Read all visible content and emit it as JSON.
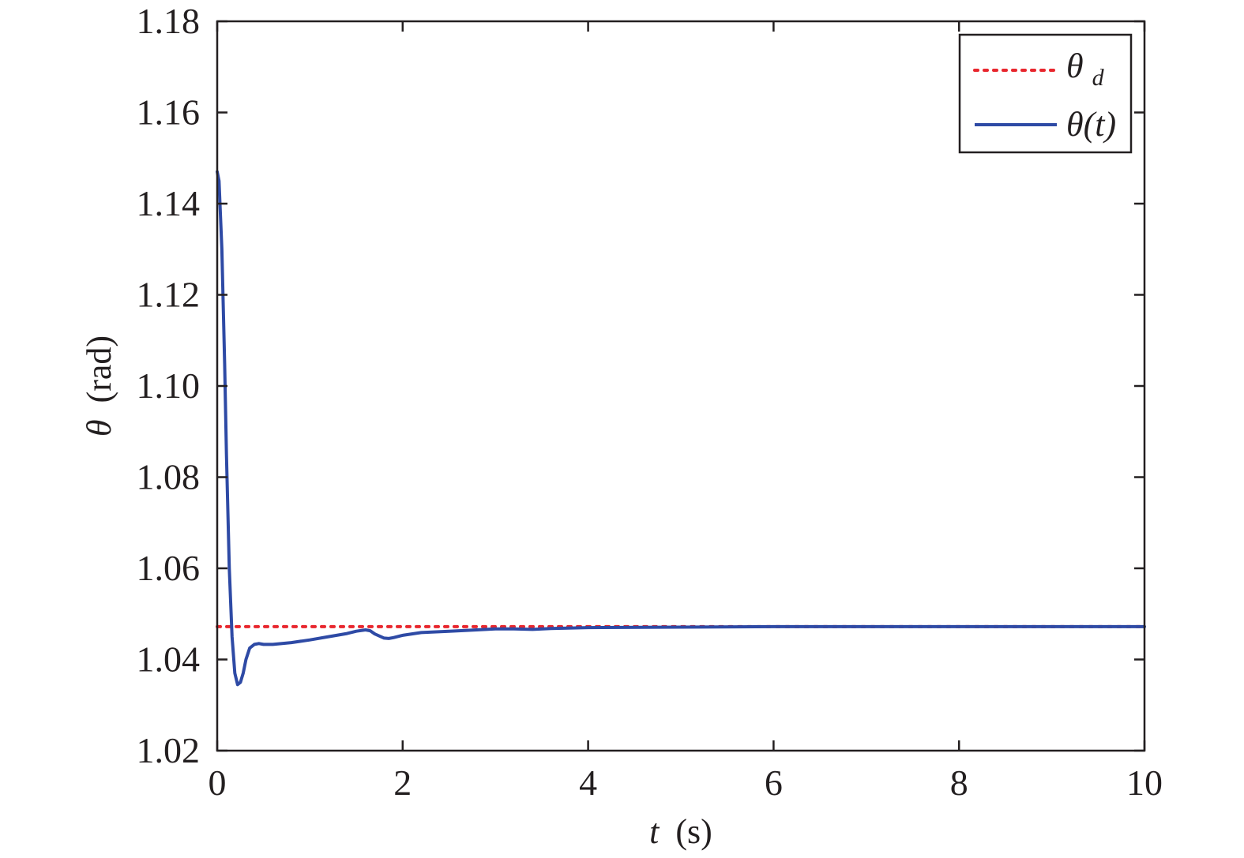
{
  "chart_data": {
    "type": "line",
    "title": "",
    "xlabel": {
      "symbol": "t",
      "unit": "(s)"
    },
    "ylabel": {
      "symbol": "θ",
      "unit": "(rad)"
    },
    "xlim": [
      0,
      10
    ],
    "ylim": [
      1.02,
      1.18
    ],
    "x_ticks": [
      0,
      2,
      4,
      6,
      8,
      10
    ],
    "x_tick_labels": [
      "0",
      "2",
      "4",
      "6",
      "8",
      "10"
    ],
    "y_ticks": [
      1.02,
      1.04,
      1.06,
      1.08,
      1.1,
      1.12,
      1.14,
      1.16,
      1.18
    ],
    "y_tick_labels": [
      "1.02",
      "1.04",
      "1.06",
      "1.08",
      "1.10",
      "1.12",
      "1.14",
      "1.16",
      "1.18"
    ],
    "grid": false,
    "legend_position": "top-right",
    "series": [
      {
        "name": "θd",
        "legend_symbol": "θ",
        "legend_subscript": "d",
        "color": "#e8262d",
        "style": "dotted",
        "x": [
          0,
          10
        ],
        "y": [
          1.0472,
          1.0472
        ]
      },
      {
        "name": "θ(t)",
        "legend_symbol": "θ",
        "legend_suffix": "(t)",
        "color": "#2e4aa5",
        "style": "solid",
        "x": [
          0,
          0.02,
          0.05,
          0.08,
          0.1,
          0.13,
          0.16,
          0.19,
          0.22,
          0.25,
          0.28,
          0.31,
          0.35,
          0.4,
          0.45,
          0.5,
          0.6,
          0.7,
          0.8,
          1.0,
          1.2,
          1.4,
          1.5,
          1.6,
          1.65,
          1.7,
          1.8,
          1.85,
          1.9,
          2.0,
          2.2,
          2.5,
          2.8,
          3.0,
          3.2,
          3.4,
          3.6,
          4.0,
          5.0,
          6.0,
          7.0,
          8.0,
          9.0,
          10.0
        ],
        "y": [
          1.147,
          1.145,
          1.13,
          1.105,
          1.085,
          1.06,
          1.045,
          1.037,
          1.0345,
          1.035,
          1.037,
          1.04,
          1.0425,
          1.0433,
          1.0435,
          1.0433,
          1.0433,
          1.0435,
          1.0437,
          1.0443,
          1.045,
          1.0457,
          1.0462,
          1.0465,
          1.0463,
          1.0456,
          1.0447,
          1.0446,
          1.0448,
          1.0453,
          1.0459,
          1.0462,
          1.0465,
          1.0467,
          1.0467,
          1.0466,
          1.0468,
          1.047,
          1.0471,
          1.0472,
          1.0472,
          1.0472,
          1.0472,
          1.0472
        ]
      }
    ]
  }
}
